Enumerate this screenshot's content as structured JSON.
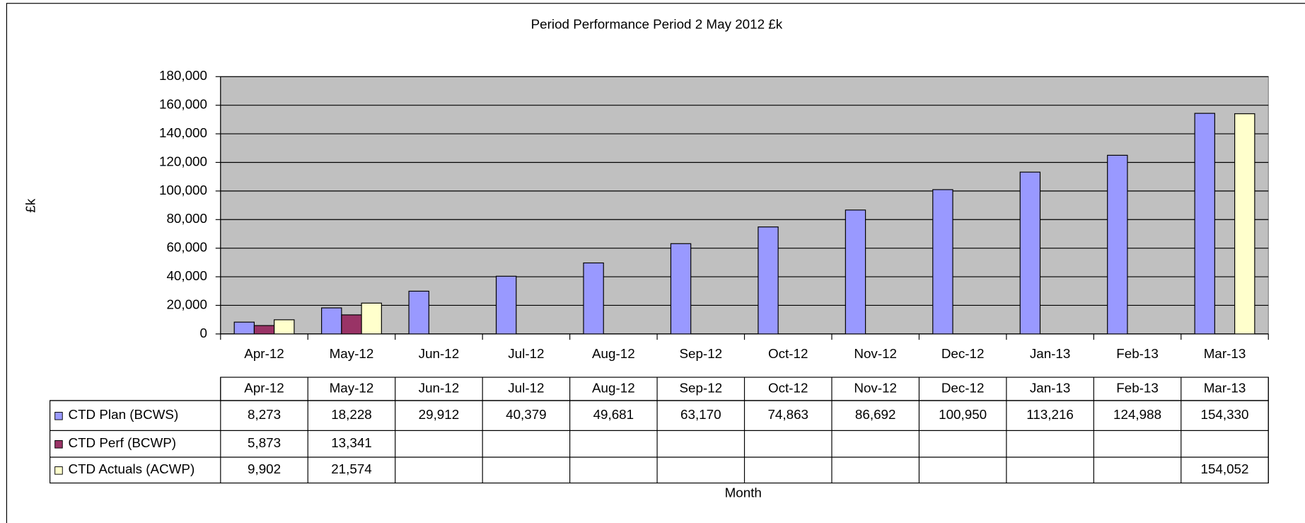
{
  "chart_data": {
    "type": "bar",
    "title": "Period Performance Period 2 May 2012 £k",
    "x_label": "Month",
    "y_label": "£k",
    "categories": [
      "Apr-12",
      "May-12",
      "Jun-12",
      "Jul-12",
      "Aug-12",
      "Sep-12",
      "Oct-12",
      "Nov-12",
      "Dec-12",
      "Jan-13",
      "Feb-13",
      "Mar-13"
    ],
    "series": [
      {
        "name": "CTD Plan (BCWS)",
        "color": "#9999ff",
        "values": [
          8273,
          18228,
          29912,
          40379,
          49681,
          63170,
          74863,
          86692,
          100950,
          113216,
          124988,
          154330
        ],
        "value_labels": [
          "8,273",
          "18,228",
          "29,912",
          "40,379",
          "49,681",
          "63,170",
          "74,863",
          "86,692",
          "100,950",
          "113,216",
          "124,988",
          "154,330"
        ]
      },
      {
        "name": "CTD Perf (BCWP)",
        "color": "#993366",
        "values": [
          5873,
          13341,
          null,
          null,
          null,
          null,
          null,
          null,
          null,
          null,
          null,
          null
        ],
        "value_labels": [
          "5,873",
          "13,341",
          null,
          null,
          null,
          null,
          null,
          null,
          null,
          null,
          null,
          null
        ]
      },
      {
        "name": "CTD Actuals (ACWP)",
        "color": "#ffffcc",
        "values": [
          9902,
          21574,
          null,
          null,
          null,
          null,
          null,
          null,
          null,
          null,
          null,
          154052
        ],
        "value_labels": [
          "9,902",
          "21,574",
          null,
          null,
          null,
          null,
          null,
          null,
          null,
          null,
          null,
          "154,052"
        ]
      }
    ],
    "ylim": [
      0,
      180000
    ],
    "yticks": [
      0,
      {
        "value": 20000,
        "label": "20,000"
      },
      {
        "value": 40000,
        "label": "40,000"
      },
      {
        "value": 60000,
        "label": "60,000"
      },
      {
        "value": 80000,
        "label": "80,000"
      },
      {
        "value": 100000,
        "label": "100,000"
      },
      {
        "value": 120000,
        "label": "120,000"
      },
      {
        "value": 140000,
        "label": "140,000"
      },
      {
        "value": 160000,
        "label": "160,000"
      },
      {
        "value": 180000,
        "label": "180,000"
      }
    ],
    "grid": true,
    "plot_background": "#c0c0c0"
  }
}
